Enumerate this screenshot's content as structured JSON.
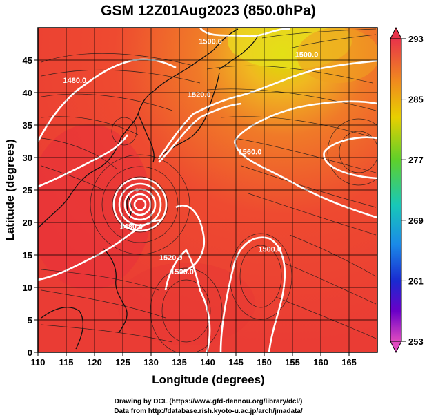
{
  "title": "GSM 12Z01Aug2023 (850.0hPa)",
  "xlabel": "Longitude (degrees)",
  "ylabel": "Latitude (degrees)",
  "x_ticks": [
    "110",
    "115",
    "120",
    "125",
    "130",
    "135",
    "140",
    "145",
    "150",
    "155",
    "160",
    "165"
  ],
  "y_ticks": [
    "0",
    "5",
    "10",
    "15",
    "20",
    "25",
    "30",
    "35",
    "40",
    "45"
  ],
  "colorbar": {
    "ticks": [
      "293",
      "285",
      "277",
      "269",
      "261",
      "253"
    ],
    "range": [
      253,
      293
    ],
    "colors_top_to_bottom": [
      "#e8334a",
      "#f08a1e",
      "#e8d000",
      "#5fd02a",
      "#18c8b8",
      "#1a8ae8",
      "#1a2ad0",
      "#6a00c8",
      "#e04ac0"
    ]
  },
  "map": {
    "lon_range": [
      110,
      170
    ],
    "lat_range": [
      0,
      50
    ],
    "grid_step_deg": 5,
    "contour_labels": [
      {
        "text": "1500.0",
        "lon": 140.5,
        "lat": 47.5
      },
      {
        "text": "1480.0",
        "lon": 116.5,
        "lat": 41.5
      },
      {
        "text": "1500.0",
        "lon": 157.5,
        "lat": 45.5
      },
      {
        "text": "1520.0",
        "lon": 138.5,
        "lat": 39.3
      },
      {
        "text": "1560.0",
        "lon": 147.5,
        "lat": 30.5
      },
      {
        "text": "1480.0",
        "lon": 126.5,
        "lat": 19.0
      },
      {
        "text": "1520.0",
        "lon": 133.5,
        "lat": 14.2
      },
      {
        "text": "1500.0",
        "lon": 135.5,
        "lat": 12.0
      },
      {
        "text": "1500.0",
        "lon": 151.0,
        "lat": 15.5
      }
    ],
    "typhoon_center": {
      "lon": 127.5,
      "lat": 25.0
    }
  },
  "credits": [
    "Drawing by DCL (https://www.gfd-dennou.org/library/dcl/)",
    "Data from http://database.rish.kyoto-u.ac.jp/arch/jmadata/"
  ]
}
